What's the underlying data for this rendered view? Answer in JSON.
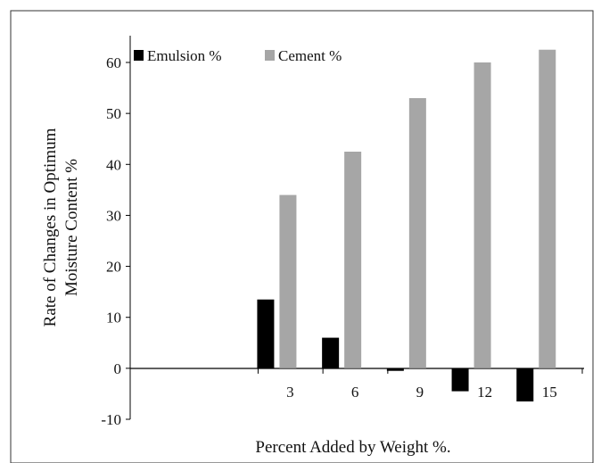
{
  "chart_data": {
    "type": "bar",
    "categories": [
      "3",
      "6",
      "9",
      "12",
      "15"
    ],
    "series": [
      {
        "name": "Emulsion %",
        "values": [
          13.5,
          6,
          -0.5,
          -4.5,
          -6.5
        ],
        "color": "#000000"
      },
      {
        "name": "Cement %",
        "values": [
          34,
          42.5,
          53,
          60,
          62.5
        ],
        "color": "#a6a6a6"
      }
    ],
    "title": "",
    "xlabel": "Percent Added by Weight %.",
    "ylabel_lines": [
      "Rate of Changes in Optimum",
      "Moisture Content %"
    ],
    "ylim": [
      -10,
      60
    ],
    "yticks": [
      "-10",
      "0",
      "10",
      "20",
      "30",
      "40",
      "50",
      "60"
    ],
    "grid": false,
    "legend_position": "top-left"
  }
}
